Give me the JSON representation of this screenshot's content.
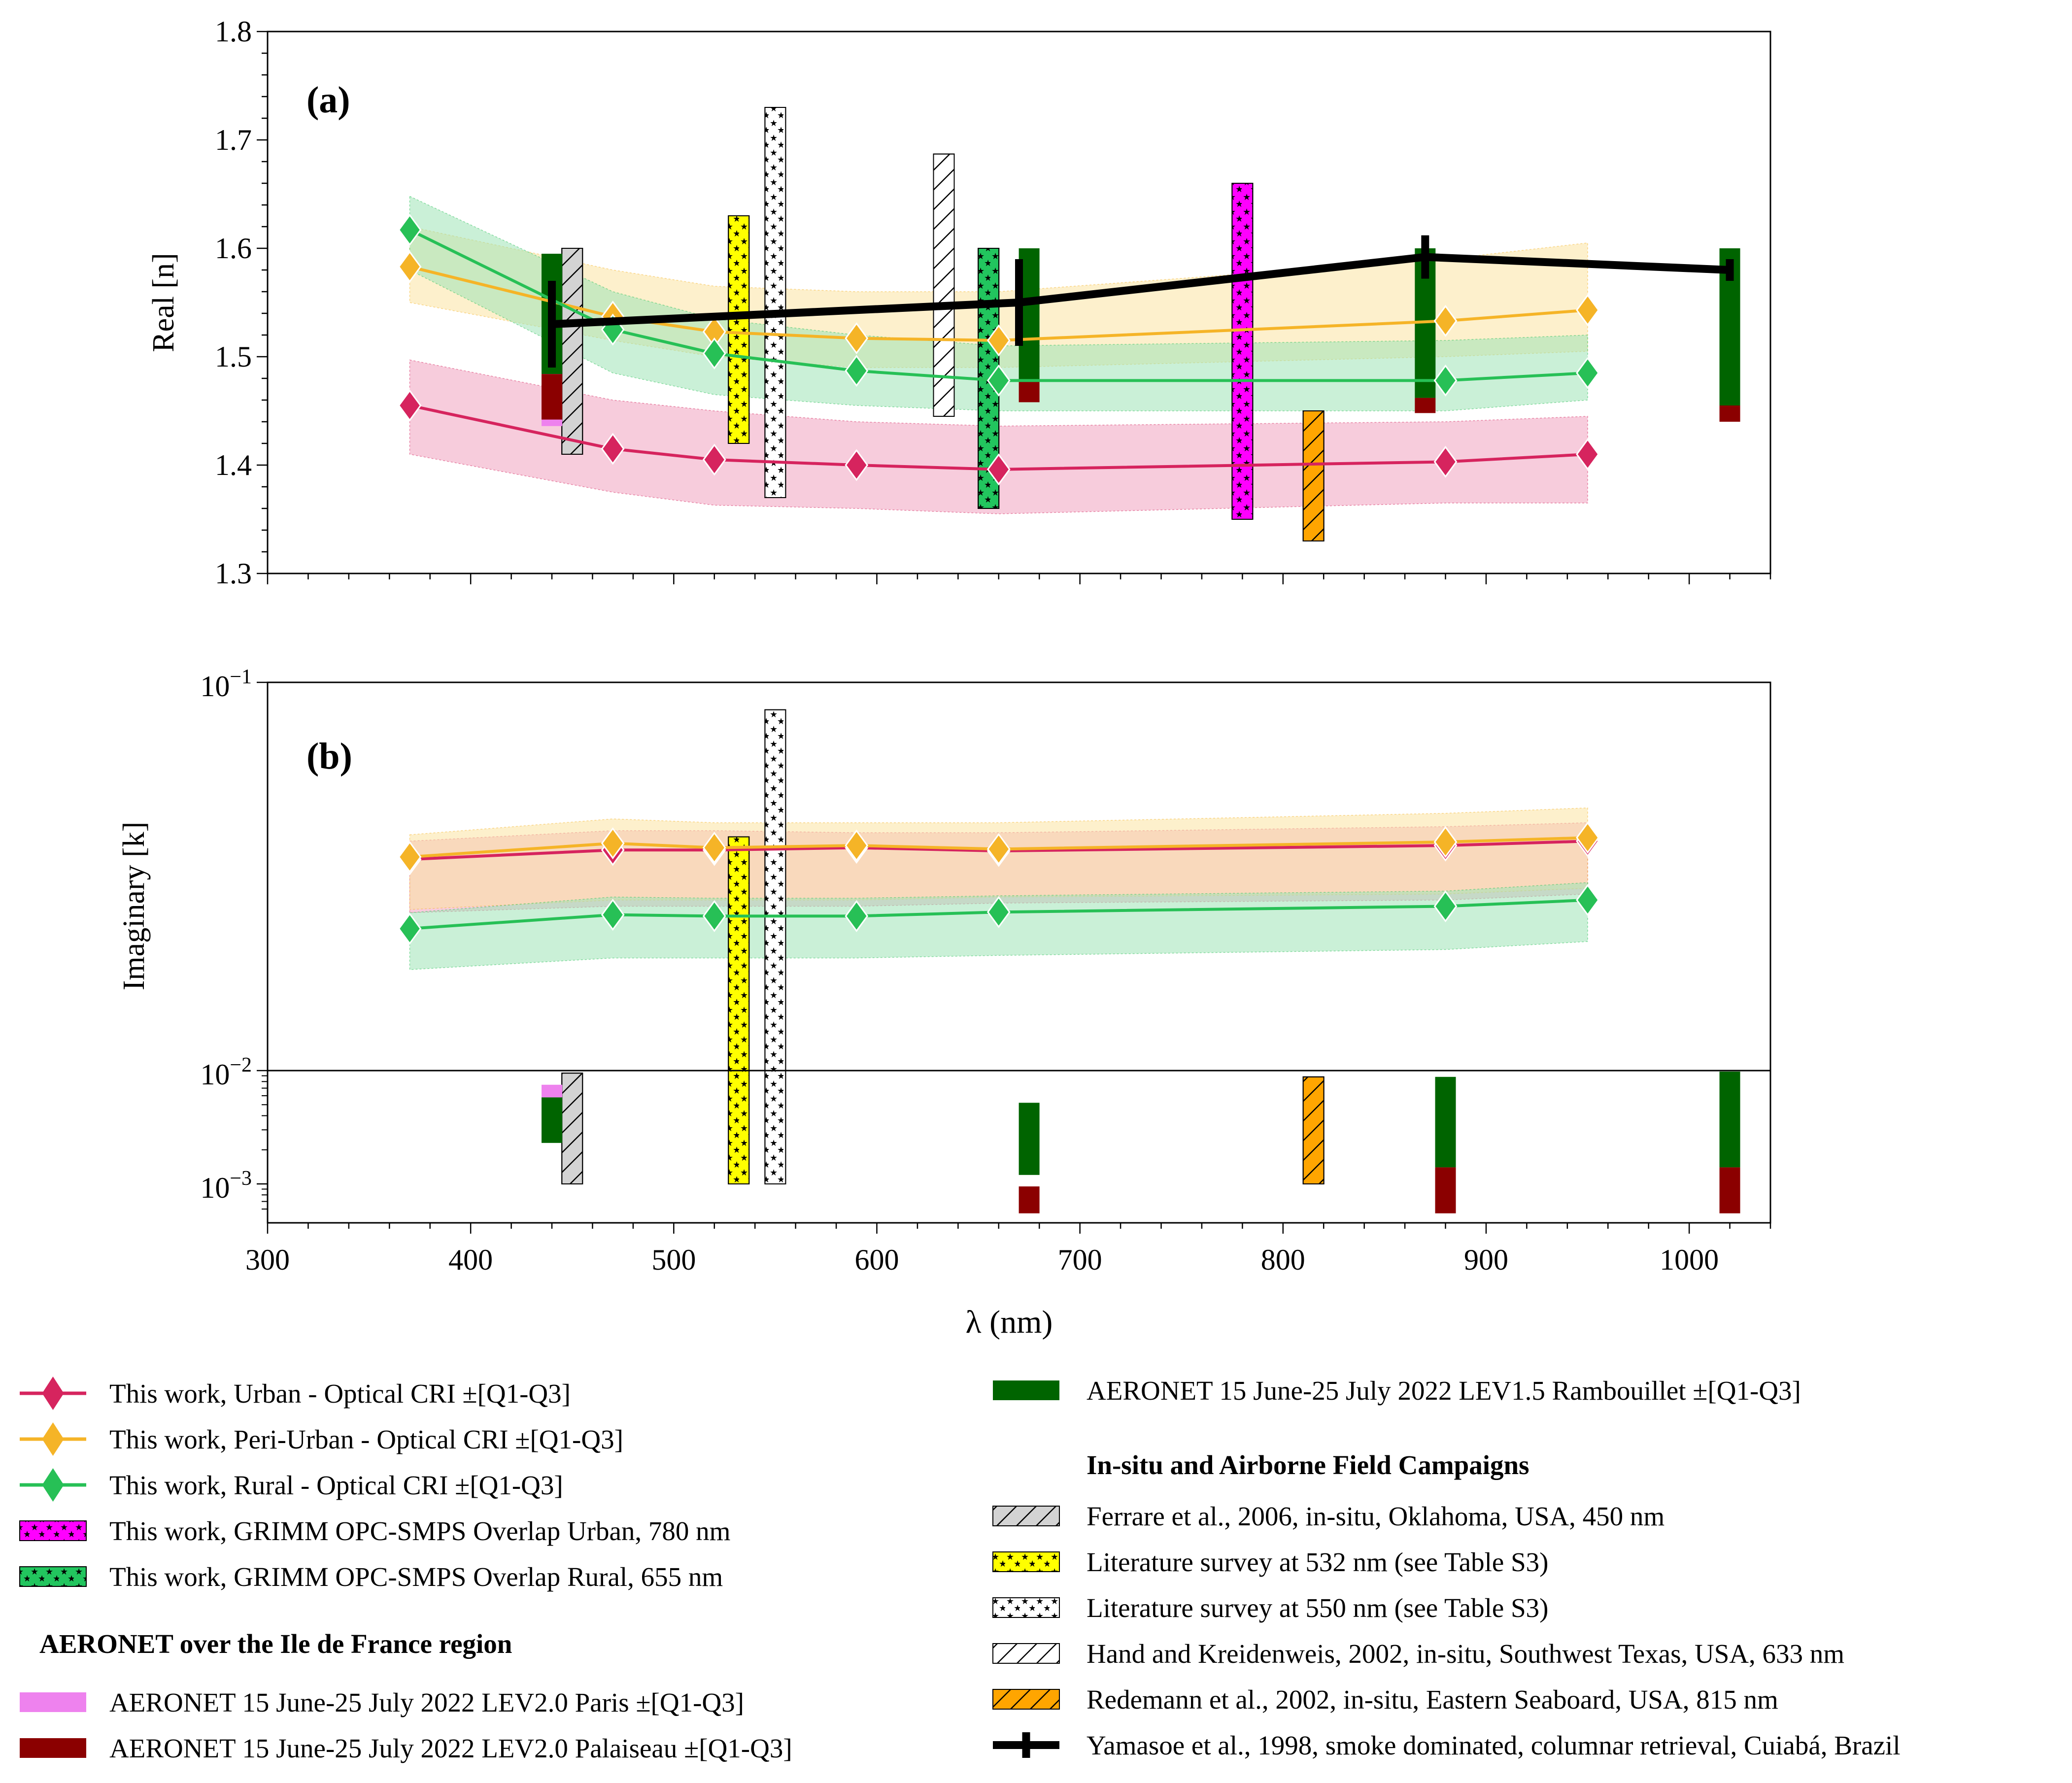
{
  "chart_data": [
    {
      "panel": "(a)",
      "type": "line",
      "ylabel": "Real [n]",
      "xlabel": "λ (nm)",
      "xlim": [
        300,
        1040
      ],
      "ylim": [
        1.3,
        1.8
      ],
      "yscale": "linear",
      "xticks": [
        300,
        400,
        500,
        600,
        700,
        800,
        900,
        1000
      ],
      "yticks": [
        1.3,
        1.4,
        1.5,
        1.6,
        1.7,
        1.8
      ],
      "ytick_labels": [
        "1.3",
        "1.4",
        "1.5",
        "1.6",
        "1.7",
        "1.8"
      ],
      "series": [
        {
          "name": "This work, Urban - Optical CRI ±[Q1-Q3]",
          "color": "#d6245e",
          "band_color": "#f0a3c0",
          "x": [
            370,
            470,
            520,
            590,
            660,
            880,
            950
          ],
          "values": [
            1.455,
            1.415,
            1.405,
            1.4,
            1.396,
            1.403,
            1.41
          ],
          "q1": [
            1.41,
            1.375,
            1.363,
            1.36,
            1.355,
            1.365,
            1.365
          ],
          "q3": [
            1.497,
            1.46,
            1.45,
            1.44,
            1.436,
            1.44,
            1.445
          ]
        },
        {
          "name": "This work, Peri-Urban - Optical CRI ±[Q1-Q3]",
          "color": "#f5b427",
          "band_color": "#fbe3a3",
          "x": [
            370,
            470,
            520,
            590,
            660,
            880,
            950
          ],
          "values": [
            1.583,
            1.537,
            1.523,
            1.517,
            1.515,
            1.533,
            1.543
          ],
          "q1": [
            1.55,
            1.515,
            1.5,
            1.49,
            1.49,
            1.5,
            1.505
          ],
          "q3": [
            1.62,
            1.58,
            1.565,
            1.56,
            1.56,
            1.59,
            1.605
          ]
        },
        {
          "name": "This work, Rural - Optical CRI ±[Q1-Q3]",
          "color": "#27c056",
          "band_color": "#9fe4b6",
          "x": [
            370,
            470,
            520,
            590,
            660,
            880,
            950
          ],
          "values": [
            1.617,
            1.525,
            1.503,
            1.487,
            1.478,
            1.478,
            1.485
          ],
          "q1": [
            1.58,
            1.485,
            1.465,
            1.455,
            1.45,
            1.45,
            1.46
          ],
          "q3": [
            1.648,
            1.56,
            1.535,
            1.52,
            1.51,
            1.515,
            1.52
          ]
        }
      ],
      "aeronet": [
        {
          "x": 440,
          "series": "Rambouillet",
          "lo": 1.484,
          "hi": 1.595
        },
        {
          "x": 440,
          "series": "Paris",
          "lo": 1.436,
          "hi": 1.484
        },
        {
          "x": 440,
          "series": "Palaiseau",
          "lo": 1.442,
          "hi": 1.484
        },
        {
          "x": 675,
          "series": "Rambouillet",
          "lo": 1.477,
          "hi": 1.6
        },
        {
          "x": 675,
          "series": "Palaiseau",
          "lo": 1.458,
          "hi": 1.477
        },
        {
          "x": 870,
          "series": "Rambouillet",
          "lo": 1.462,
          "hi": 1.6
        },
        {
          "x": 870,
          "series": "Palaiseau",
          "lo": 1.448,
          "hi": 1.462
        },
        {
          "x": 1020,
          "series": "Rambouillet",
          "lo": 1.455,
          "hi": 1.6
        },
        {
          "x": 1020,
          "series": "Palaiseau",
          "lo": 1.44,
          "hi": 1.455
        }
      ],
      "bars": [
        {
          "legend": "This work, GRIMM OPC-SMPS Overlap Urban, 780 nm",
          "x": 780,
          "lo": 1.35,
          "hi": 1.66
        },
        {
          "legend": "This work, GRIMM OPC-SMPS Overlap Rural, 655 nm",
          "x": 655,
          "lo": 1.36,
          "hi": 1.6
        },
        {
          "legend": "Ferrare et al., 2006, in-situ, Oklahoma, USA, 450 nm",
          "x": 450,
          "lo": 1.41,
          "hi": 1.6
        },
        {
          "legend": "Literature survey at 532 nm (see Table S3)",
          "x": 532,
          "lo": 1.42,
          "hi": 1.63
        },
        {
          "legend": "Literature survey at 550 nm (see Table S3)",
          "x": 550,
          "lo": 1.37,
          "hi": 1.73
        },
        {
          "legend": "Hand and Kreidenweis, 2002, in-situ, Southwest Texas, USA, 633 nm",
          "x": 633,
          "lo": 1.445,
          "hi": 1.687
        },
        {
          "legend": "Redemann et al., 2002, in-situ, Eastern Seaboard, USA, 815 nm",
          "x": 815,
          "lo": 1.33,
          "hi": 1.45
        }
      ],
      "yamasoe": {
        "name": "Yamasoe et al., 1998, smoke dominated, columnar retrieval, Cuiabá, Brazil",
        "x": [
          440,
          670,
          870,
          1020
        ],
        "values": [
          1.53,
          1.55,
          1.592,
          1.58
        ],
        "err": [
          0.04,
          0.04,
          0.02,
          0.01
        ]
      }
    },
    {
      "panel": "(b)",
      "type": "line",
      "ylabel": "Imaginary [k]",
      "xlabel": "λ (nm)",
      "xlim": [
        300,
        1040
      ],
      "yscale": "log (upper 0.01–0.1 and lower 0.00055–0.01 segments)",
      "xticks": [
        300,
        400,
        500,
        600,
        700,
        800,
        900,
        1000
      ],
      "ytick_labels": [
        "10−1",
        "10−2",
        "10−3"
      ],
      "series": [
        {
          "name": "Urban",
          "color": "#d6245e",
          "band_color": "#f0a3c0",
          "x": [
            370,
            470,
            520,
            590,
            660,
            880,
            950
          ],
          "values": [
            0.035,
            0.037,
            0.037,
            0.0375,
            0.0368,
            0.038,
            0.039
          ],
          "q1": [
            0.0255,
            0.0265,
            0.0265,
            0.0265,
            0.027,
            0.0275,
            0.0285
          ],
          "q3": [
            0.039,
            0.0415,
            0.0415,
            0.041,
            0.041,
            0.0425,
            0.0435
          ]
        },
        {
          "name": "Peri-Urban",
          "color": "#f5b427",
          "band_color": "#fbe3a3",
          "x": [
            370,
            470,
            520,
            590,
            660,
            880,
            950
          ],
          "values": [
            0.0355,
            0.0385,
            0.0375,
            0.038,
            0.0372,
            0.0388,
            0.0398
          ],
          "q1": [
            0.026,
            0.0275,
            0.0275,
            0.0275,
            0.028,
            0.0285,
            0.0295
          ],
          "q3": [
            0.0405,
            0.0445,
            0.0435,
            0.0435,
            0.0435,
            0.046,
            0.0475
          ]
        },
        {
          "name": "Rural",
          "color": "#27c056",
          "band_color": "#9fe4b6",
          "x": [
            370,
            470,
            520,
            590,
            660,
            880,
            950
          ],
          "values": [
            0.0232,
            0.0252,
            0.025,
            0.025,
            0.0256,
            0.0265,
            0.0275
          ],
          "q1": [
            0.0182,
            0.0195,
            0.0195,
            0.0195,
            0.0198,
            0.0205,
            0.0215
          ],
          "q3": [
            0.0255,
            0.028,
            0.0278,
            0.0278,
            0.0282,
            0.029,
            0.0305
          ]
        }
      ],
      "aeronet": [
        {
          "x": 440,
          "series": "Paris",
          "lo": 0.0058,
          "hi": 0.0075
        },
        {
          "x": 440,
          "series": "Rambouillet",
          "lo": 0.0023,
          "hi": 0.0058
        },
        {
          "x": 675,
          "series": "Rambouillet",
          "lo": 0.0012,
          "hi": 0.0052
        },
        {
          "x": 675,
          "series": "Palaiseau",
          "lo": 0.00055,
          "hi": 0.00095
        },
        {
          "x": 880,
          "series": "Rambouillet",
          "lo": 0.0014,
          "hi": 0.0088
        },
        {
          "x": 880,
          "series": "Palaiseau",
          "lo": 0.00055,
          "hi": 0.0014
        },
        {
          "x": 1020,
          "series": "Rambouillet",
          "lo": 0.0014,
          "hi": 0.0098
        },
        {
          "x": 1020,
          "series": "Palaiseau",
          "lo": 0.00055,
          "hi": 0.0014
        }
      ],
      "bars": [
        {
          "legend": "Ferrare et al., 2006, in-situ, Oklahoma, USA, 450 nm",
          "x": 450,
          "lo": 0.001,
          "hi": 0.0095
        },
        {
          "legend": "Literature survey at 532 nm (see Table S3)",
          "x": 532,
          "lo": 0.001,
          "hi": 0.04
        },
        {
          "legend": "Literature survey at 550 nm (see Table S3)",
          "x": 550,
          "lo": 0.001,
          "hi": 0.085
        },
        {
          "legend": "Redemann et al., 2002, in-situ, Eastern Seaboard, USA, 815 nm",
          "x": 815,
          "lo": 0.001,
          "hi": 0.0088
        }
      ]
    }
  ],
  "legend": {
    "left": [
      {
        "label": "This work, Urban - Optical CRI ±[Q1-Q3]",
        "kind": "line",
        "color": "#d6245e"
      },
      {
        "label": "This work, Peri-Urban - Optical CRI ±[Q1-Q3]",
        "kind": "line",
        "color": "#f5b427"
      },
      {
        "label": "This work, Rural - Optical CRI ±[Q1-Q3]",
        "kind": "line",
        "color": "#27c056"
      },
      {
        "label": "This work, GRIMM OPC-SMPS Overlap Urban, 780 nm",
        "kind": "stars",
        "color": "#ff00ff"
      },
      {
        "label": "This work, GRIMM OPC-SMPS Overlap Rural, 655 nm",
        "kind": "stars",
        "color": "#22c55e"
      }
    ],
    "left_heading": "AERONET over the Ile de France region",
    "left2": [
      {
        "label": "AERONET 15 June-25 July 2022 LEV2.0 Paris ±[Q1-Q3]",
        "kind": "solid",
        "color": "#ee82ee"
      },
      {
        "label": "AERONET 15 June-25 July 2022 LEV2.0 Palaiseau ±[Q1-Q3]",
        "kind": "solid",
        "color": "#8b0000"
      }
    ],
    "right_top": [
      {
        "label": "AERONET 15 June-25 July 2022 LEV1.5 Rambouillet ±[Q1-Q3]",
        "kind": "solid",
        "color": "#006400"
      }
    ],
    "right_heading": "In-situ and Airborne Field Campaigns",
    "right": [
      {
        "label": "Ferrare et al., 2006, in-situ, Oklahoma, USA, 450 nm",
        "kind": "hatch",
        "color": "#d3d3d3"
      },
      {
        "label": "Literature survey at 532 nm (see Table S3)",
        "kind": "stars",
        "color": "#ffff00"
      },
      {
        "label": "Literature survey at 550 nm (see Table S3)",
        "kind": "stars",
        "color": "#ffffff"
      },
      {
        "label": "Hand and Kreidenweis, 2002, in-situ, Southwest Texas, USA, 633 nm",
        "kind": "hatch",
        "color": "#ffffff"
      },
      {
        "label": "Redemann et al., 2002, in-situ, Eastern Seaboard, USA, 815 nm",
        "kind": "hatch",
        "color": "#ffa500"
      },
      {
        "label": "Yamasoe et al., 1998, smoke dominated, columnar retrieval, Cuiabá, Brazil",
        "kind": "errline",
        "color": "#000000"
      }
    ]
  }
}
